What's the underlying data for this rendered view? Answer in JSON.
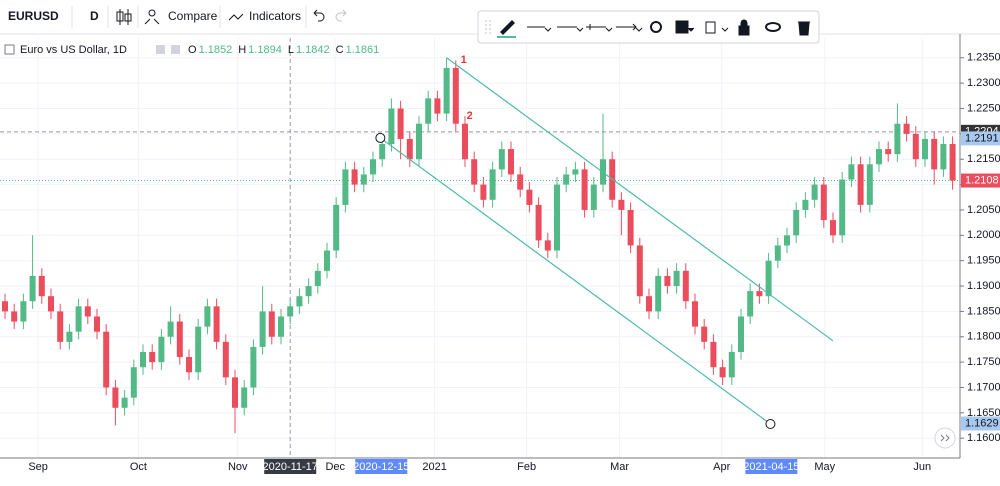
{
  "toolbar": {
    "symbol": "EURUSD",
    "interval": "D",
    "compare": "Compare",
    "indicators": "Indicators"
  },
  "chart_data": {
    "type": "candlestick",
    "legend": {
      "title": "Euro vs US Dollar, 1D",
      "items": [
        {
          "label": "O",
          "value": 1.1852
        },
        {
          "label": "H",
          "value": 1.1894
        },
        {
          "label": "L",
          "value": 1.1842
        },
        {
          "label": "C",
          "value": 1.1861
        }
      ]
    },
    "up_color": "#53b987",
    "down_color": "#eb4d5c",
    "ylim": [
      1.1561,
      1.2389
    ],
    "yticks": [
      {
        "value": 1.16,
        "label": "1.1600"
      },
      {
        "value": 1.165,
        "label": "1.1650"
      },
      {
        "value": 1.17,
        "label": "1.1700"
      },
      {
        "value": 1.175,
        "label": "1.1750"
      },
      {
        "value": 1.18,
        "label": "1.1800"
      },
      {
        "value": 1.185,
        "label": "1.1850"
      },
      {
        "value": 1.19,
        "label": "1.1900"
      },
      {
        "value": 1.195,
        "label": "1.1950"
      },
      {
        "value": 1.2,
        "label": "1.2000"
      },
      {
        "value": 1.205,
        "label": "1.2050"
      },
      {
        "value": 1.21,
        "label": "1.2100"
      },
      {
        "value": 1.215,
        "label": "1.2150"
      },
      {
        "value": 1.22,
        "label": "1.2200"
      },
      {
        "value": 1.225,
        "label": "1.2250"
      },
      {
        "value": 1.23,
        "label": "1.2300"
      },
      {
        "value": 1.235,
        "label": "1.2350"
      }
    ],
    "xticks": [
      {
        "value": 3.6,
        "label": "Sep"
      },
      {
        "value": 14.5,
        "label": "Oct"
      },
      {
        "value": 25.3,
        "label": "Nov"
      },
      {
        "value": 35.9,
        "label": "Dec"
      },
      {
        "value": 46.7,
        "label": "2021"
      },
      {
        "value": 56.7,
        "label": "Feb"
      },
      {
        "value": 66.8,
        "label": "Mar"
      },
      {
        "value": 77.9,
        "label": "Apr"
      },
      {
        "value": 89.1,
        "label": "May"
      },
      {
        "value": 99.7,
        "label": "Jun"
      }
    ],
    "date_markers": [
      {
        "value": 31,
        "label": "2020-11-17"
      },
      {
        "value": 40.9,
        "label": "2020-12-15"
      },
      {
        "value": 83.3,
        "label": "2021-04-15"
      }
    ],
    "price_labels": [
      {
        "value": 1.2204,
        "color": "#333333"
      },
      {
        "value": 1.2191,
        "color": "#a9c8f0"
      },
      {
        "value": 1.2108,
        "color": "#eb4d5c"
      },
      {
        "value": 1.1629,
        "color": "#a9c8f0"
      }
    ],
    "channel": {
      "color": "#4fbaa8",
      "upper": {
        "x": [
          48,
          90
        ],
        "y": [
          1.235,
          1.1792
        ]
      },
      "lower": {
        "x": [
          40.8,
          83.2
        ],
        "y": [
          1.2192,
          1.1628
        ]
      }
    },
    "annotations": [
      "1",
      "2"
    ],
    "ohlc": [
      [
        1.187,
        1.1885,
        1.1835,
        1.185
      ],
      [
        1.185,
        1.1865,
        1.1815,
        1.183
      ],
      [
        1.183,
        1.1885,
        1.1815,
        1.187
      ],
      [
        1.187,
        1.2,
        1.1855,
        1.192
      ],
      [
        1.192,
        1.1935,
        1.1865,
        1.188
      ],
      [
        1.188,
        1.1895,
        1.1835,
        1.185
      ],
      [
        1.185,
        1.1865,
        1.1775,
        1.179
      ],
      [
        1.179,
        1.1825,
        1.1775,
        1.181
      ],
      [
        1.181,
        1.1875,
        1.1795,
        1.186
      ],
      [
        1.186,
        1.1875,
        1.1825,
        1.184
      ],
      [
        1.184,
        1.1855,
        1.1795,
        1.181
      ],
      [
        1.181,
        1.1825,
        1.1685,
        1.17
      ],
      [
        1.17,
        1.1715,
        1.1625,
        1.166
      ],
      [
        1.166,
        1.1695,
        1.1645,
        1.168
      ],
      [
        1.168,
        1.1755,
        1.1665,
        1.174
      ],
      [
        1.174,
        1.1785,
        1.1725,
        1.177
      ],
      [
        1.177,
        1.1785,
        1.1735,
        1.175
      ],
      [
        1.175,
        1.1815,
        1.1735,
        1.18
      ],
      [
        1.18,
        1.186,
        1.1785,
        1.183
      ],
      [
        1.183,
        1.1845,
        1.1745,
        1.176
      ],
      [
        1.176,
        1.1775,
        1.1715,
        1.173
      ],
      [
        1.173,
        1.1835,
        1.1715,
        1.182
      ],
      [
        1.182,
        1.1875,
        1.1805,
        1.186
      ],
      [
        1.186,
        1.1875,
        1.1775,
        1.179
      ],
      [
        1.179,
        1.1805,
        1.1705,
        1.172
      ],
      [
        1.172,
        1.1735,
        1.161,
        1.166
      ],
      [
        1.166,
        1.1715,
        1.1645,
        1.17
      ],
      [
        1.17,
        1.1795,
        1.1685,
        1.178
      ],
      [
        1.178,
        1.19,
        1.1765,
        1.185
      ],
      [
        1.185,
        1.1865,
        1.1785,
        1.18
      ],
      [
        1.18,
        1.1855,
        1.1785,
        1.184
      ],
      [
        1.184,
        1.1875,
        1.1825,
        1.186
      ],
      [
        1.186,
        1.1895,
        1.1845,
        1.188
      ],
      [
        1.188,
        1.1915,
        1.1865,
        1.19
      ],
      [
        1.19,
        1.1945,
        1.1885,
        1.193
      ],
      [
        1.193,
        1.1985,
        1.1915,
        1.197
      ],
      [
        1.197,
        1.2075,
        1.1955,
        1.206
      ],
      [
        1.206,
        1.2145,
        1.2045,
        1.213
      ],
      [
        1.213,
        1.2145,
        1.2085,
        1.21
      ],
      [
        1.21,
        1.2135,
        1.2085,
        1.212
      ],
      [
        1.212,
        1.2165,
        1.2105,
        1.215
      ],
      [
        1.215,
        1.2195,
        1.2135,
        1.218
      ],
      [
        1.218,
        1.227,
        1.2165,
        1.225
      ],
      [
        1.225,
        1.2265,
        1.215,
        1.219
      ],
      [
        1.219,
        1.2205,
        1.2135,
        1.215
      ],
      [
        1.215,
        1.2235,
        1.2135,
        1.222
      ],
      [
        1.222,
        1.2285,
        1.2205,
        1.227
      ],
      [
        1.227,
        1.2285,
        1.2225,
        1.224
      ],
      [
        1.224,
        1.235,
        1.2225,
        1.233
      ],
      [
        1.233,
        1.2345,
        1.2205,
        1.222
      ],
      [
        1.222,
        1.2235,
        1.2135,
        1.215
      ],
      [
        1.215,
        1.2165,
        1.2085,
        1.21
      ],
      [
        1.21,
        1.2115,
        1.2055,
        1.207
      ],
      [
        1.207,
        1.2145,
        1.2055,
        1.213
      ],
      [
        1.213,
        1.2185,
        1.2115,
        1.217
      ],
      [
        1.217,
        1.2185,
        1.2105,
        1.212
      ],
      [
        1.212,
        1.2135,
        1.2075,
        1.209
      ],
      [
        1.209,
        1.2105,
        1.2045,
        1.206
      ],
      [
        1.206,
        1.2075,
        1.1975,
        1.199
      ],
      [
        1.199,
        1.2005,
        1.1955,
        1.197
      ],
      [
        1.197,
        1.2115,
        1.1955,
        1.21
      ],
      [
        1.21,
        1.2135,
        1.2085,
        1.212
      ],
      [
        1.212,
        1.2145,
        1.2105,
        1.213
      ],
      [
        1.213,
        1.2145,
        1.2035,
        1.205
      ],
      [
        1.205,
        1.2115,
        1.2035,
        1.21
      ],
      [
        1.21,
        1.224,
        1.2085,
        1.215
      ],
      [
        1.215,
        1.2165,
        1.2055,
        1.207
      ],
      [
        1.207,
        1.2085,
        1.2,
        1.205
      ],
      [
        1.205,
        1.2065,
        1.1965,
        1.198
      ],
      [
        1.198,
        1.1995,
        1.1865,
        1.188
      ],
      [
        1.188,
        1.1895,
        1.1835,
        1.185
      ],
      [
        1.185,
        1.1935,
        1.1835,
        1.192
      ],
      [
        1.192,
        1.1935,
        1.1885,
        1.19
      ],
      [
        1.19,
        1.1945,
        1.1885,
        1.193
      ],
      [
        1.193,
        1.1945,
        1.1855,
        1.187
      ],
      [
        1.187,
        1.1885,
        1.1805,
        1.182
      ],
      [
        1.182,
        1.1835,
        1.1775,
        1.179
      ],
      [
        1.179,
        1.1805,
        1.1725,
        1.174
      ],
      [
        1.174,
        1.1755,
        1.1705,
        1.172
      ],
      [
        1.172,
        1.1785,
        1.1705,
        1.177
      ],
      [
        1.177,
        1.1855,
        1.1755,
        1.184
      ],
      [
        1.184,
        1.1905,
        1.1825,
        1.189
      ],
      [
        1.189,
        1.1905,
        1.1865,
        1.188
      ],
      [
        1.188,
        1.1965,
        1.1865,
        1.195
      ],
      [
        1.195,
        1.1995,
        1.1935,
        1.198
      ],
      [
        1.198,
        1.2015,
        1.1965,
        1.2
      ],
      [
        1.2,
        1.2065,
        1.1985,
        1.205
      ],
      [
        1.205,
        1.2085,
        1.2035,
        1.207
      ],
      [
        1.207,
        1.2115,
        1.2055,
        1.21
      ],
      [
        1.21,
        1.2115,
        1.2015,
        1.203
      ],
      [
        1.203,
        1.2045,
        1.1985,
        1.2
      ],
      [
        1.2,
        1.2125,
        1.1985,
        1.211
      ],
      [
        1.211,
        1.2155,
        1.2095,
        1.214
      ],
      [
        1.214,
        1.2155,
        1.2045,
        1.206
      ],
      [
        1.206,
        1.2155,
        1.2045,
        1.214
      ],
      [
        1.214,
        1.2185,
        1.2125,
        1.217
      ],
      [
        1.217,
        1.2185,
        1.2145,
        1.216
      ],
      [
        1.216,
        1.226,
        1.2145,
        1.222
      ],
      [
        1.222,
        1.2235,
        1.2185,
        1.22
      ],
      [
        1.22,
        1.2215,
        1.2135,
        1.215
      ],
      [
        1.215,
        1.2205,
        1.2135,
        1.219
      ],
      [
        1.219,
        1.2205,
        1.21,
        1.213
      ],
      [
        1.213,
        1.2195,
        1.2115,
        1.218
      ],
      [
        1.218,
        1.2195,
        1.209,
        1.2108
      ]
    ]
  }
}
